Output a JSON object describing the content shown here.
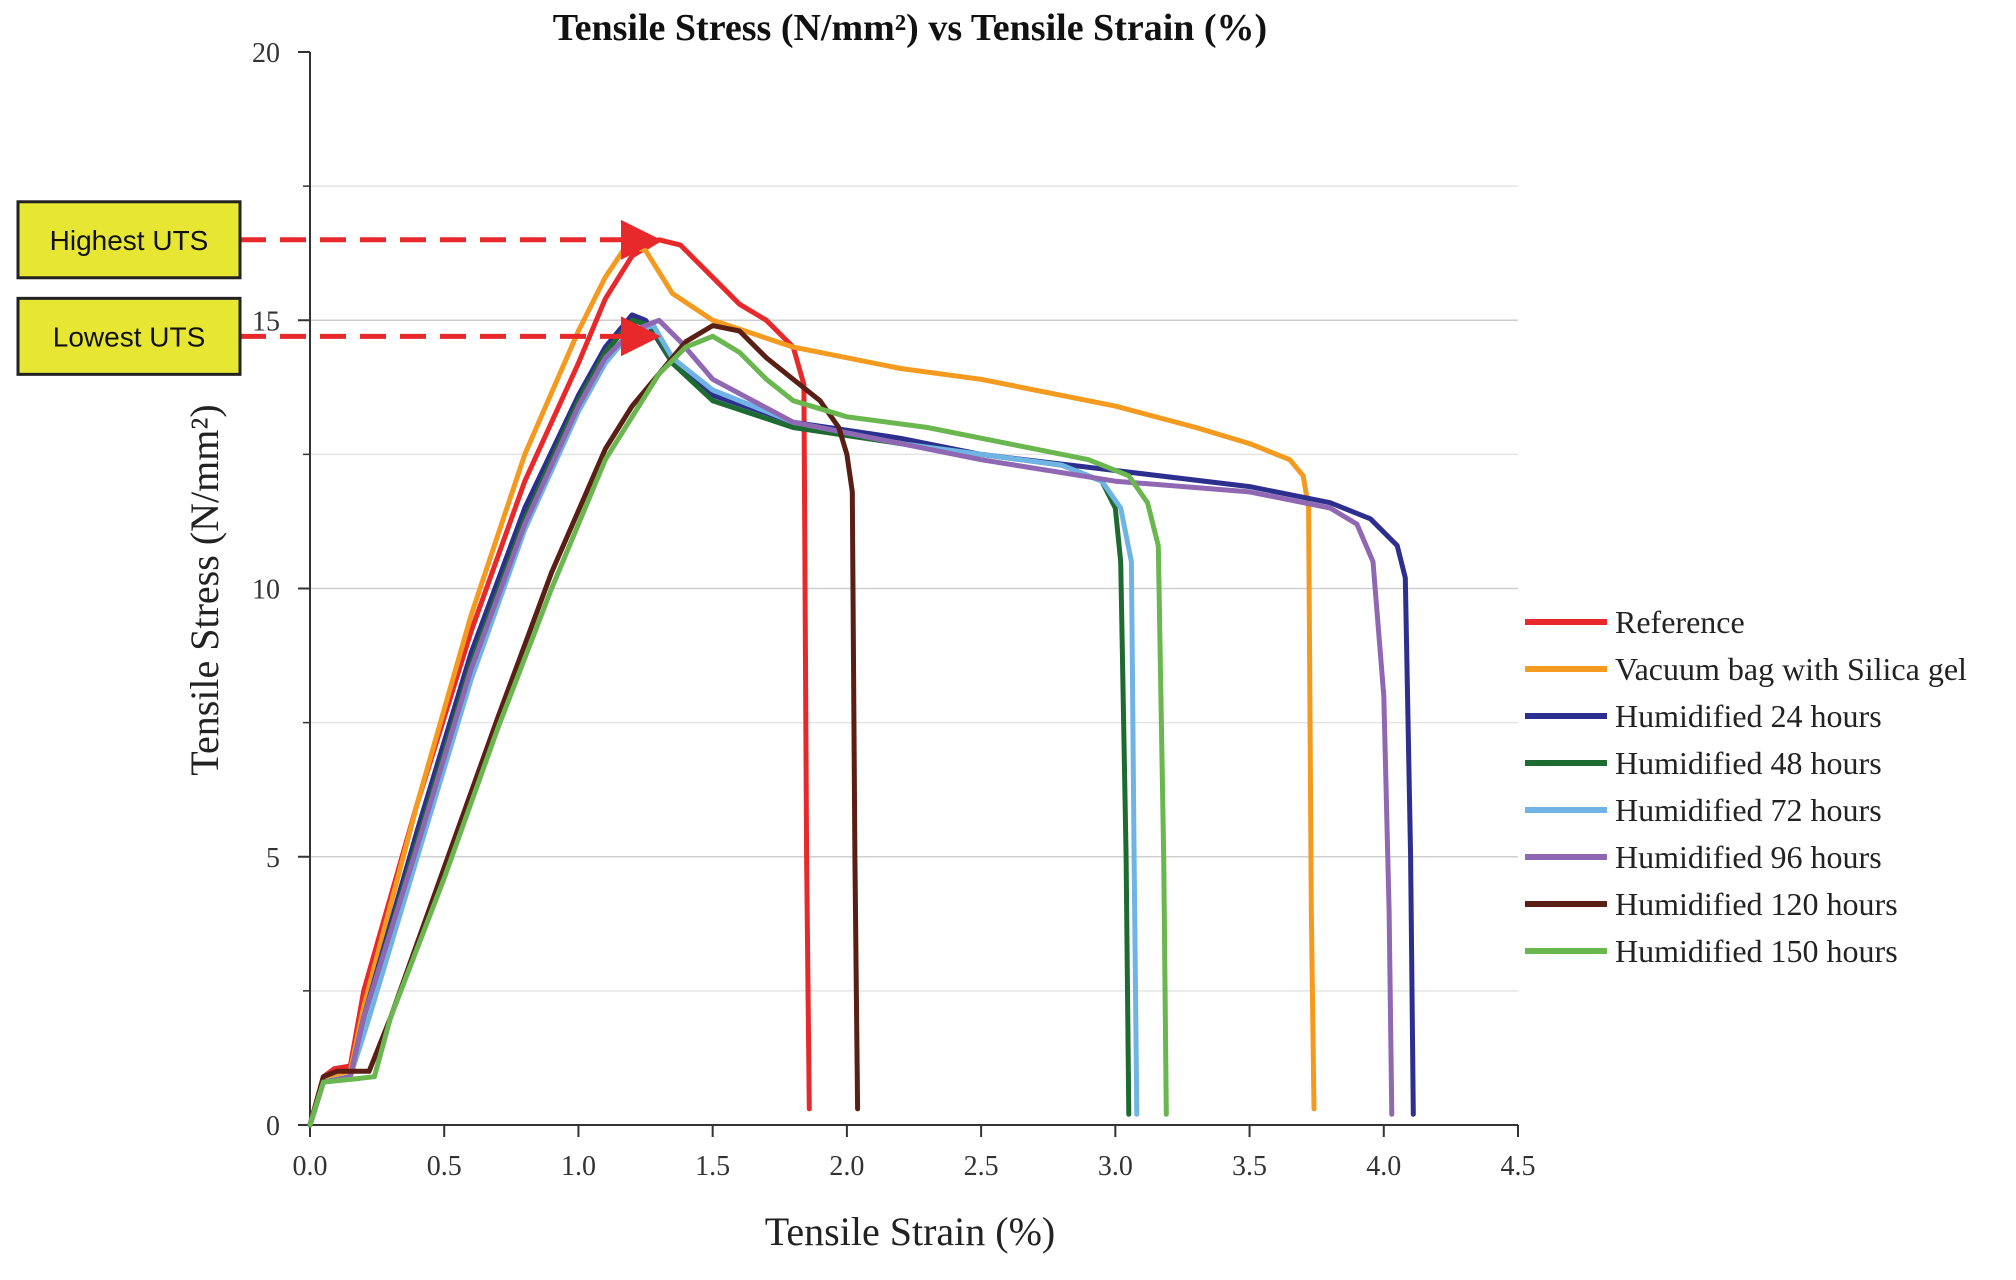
{
  "chart_data": {
    "type": "line",
    "title": "Tensile Stress (N/mm²) vs Tensile Strain (%)",
    "xlabel": "Tensile Strain (%)",
    "ylabel": "Tensile Stress (N/mm²)",
    "xlim": [
      0,
      4.5
    ],
    "ylim": [
      0,
      20
    ],
    "xticks": [
      "0.0",
      "0.5",
      "1.0",
      "1.5",
      "2.0",
      "2.5",
      "3.0",
      "3.5",
      "4.0",
      "4.5"
    ],
    "yticks": [
      "0",
      "5",
      "10",
      "15",
      "20"
    ],
    "grid": "horizontal",
    "legend_position": "right",
    "series": [
      {
        "name": "Reference",
        "color": "#e8292b",
        "points": [
          [
            0,
            0
          ],
          [
            0.05,
            0.9
          ],
          [
            0.09,
            1.05
          ],
          [
            0.15,
            1.1
          ],
          [
            0.2,
            2.5
          ],
          [
            0.4,
            6.0
          ],
          [
            0.6,
            9.2
          ],
          [
            0.8,
            12.0
          ],
          [
            1.0,
            14.2
          ],
          [
            1.1,
            15.4
          ],
          [
            1.2,
            16.2
          ],
          [
            1.3,
            16.5
          ],
          [
            1.38,
            16.4
          ],
          [
            1.5,
            15.8
          ],
          [
            1.6,
            15.3
          ],
          [
            1.7,
            15.0
          ],
          [
            1.8,
            14.5
          ],
          [
            1.84,
            13.8
          ],
          [
            1.85,
            5
          ],
          [
            1.86,
            0.3
          ]
        ]
      },
      {
        "name": "Vacuum bag with Silica gel",
        "color": "#f39a1f",
        "points": [
          [
            0,
            0
          ],
          [
            0.05,
            0.9
          ],
          [
            0.15,
            1.0
          ],
          [
            0.2,
            2.2
          ],
          [
            0.4,
            6.0
          ],
          [
            0.6,
            9.5
          ],
          [
            0.8,
            12.5
          ],
          [
            1.0,
            14.8
          ],
          [
            1.1,
            15.8
          ],
          [
            1.18,
            16.4
          ],
          [
            1.25,
            16.3
          ],
          [
            1.35,
            15.5
          ],
          [
            1.5,
            15.0
          ],
          [
            1.8,
            14.5
          ],
          [
            2.2,
            14.1
          ],
          [
            2.5,
            13.9
          ],
          [
            3.0,
            13.4
          ],
          [
            3.3,
            13.0
          ],
          [
            3.5,
            12.7
          ],
          [
            3.65,
            12.4
          ],
          [
            3.7,
            12.1
          ],
          [
            3.72,
            11.5
          ],
          [
            3.73,
            4.0
          ],
          [
            3.74,
            0.3
          ]
        ]
      },
      {
        "name": "Humidified 24 hours",
        "color": "#2c2f8e",
        "points": [
          [
            0,
            0
          ],
          [
            0.05,
            0.8
          ],
          [
            0.15,
            0.9
          ],
          [
            0.2,
            2.0
          ],
          [
            0.4,
            5.5
          ],
          [
            0.6,
            8.8
          ],
          [
            0.8,
            11.5
          ],
          [
            1.0,
            13.6
          ],
          [
            1.1,
            14.5
          ],
          [
            1.2,
            15.1
          ],
          [
            1.25,
            15.0
          ],
          [
            1.35,
            14.2
          ],
          [
            1.5,
            13.6
          ],
          [
            1.8,
            13.1
          ],
          [
            2.2,
            12.8
          ],
          [
            2.5,
            12.5
          ],
          [
            3.0,
            12.2
          ],
          [
            3.5,
            11.9
          ],
          [
            3.8,
            11.6
          ],
          [
            3.95,
            11.3
          ],
          [
            4.05,
            10.8
          ],
          [
            4.08,
            10.2
          ],
          [
            4.1,
            5.0
          ],
          [
            4.11,
            0.2
          ]
        ]
      },
      {
        "name": "Humidified 48 hours",
        "color": "#1e6b32",
        "points": [
          [
            0,
            0
          ],
          [
            0.05,
            0.8
          ],
          [
            0.15,
            0.9
          ],
          [
            0.2,
            2.0
          ],
          [
            0.4,
            5.3
          ],
          [
            0.6,
            8.6
          ],
          [
            0.8,
            11.3
          ],
          [
            1.0,
            13.5
          ],
          [
            1.1,
            14.4
          ],
          [
            1.2,
            15.0
          ],
          [
            1.27,
            14.9
          ],
          [
            1.35,
            14.2
          ],
          [
            1.5,
            13.5
          ],
          [
            1.8,
            13.0
          ],
          [
            2.2,
            12.7
          ],
          [
            2.5,
            12.5
          ],
          [
            2.8,
            12.3
          ],
          [
            2.95,
            12.0
          ],
          [
            3.0,
            11.5
          ],
          [
            3.02,
            10.5
          ],
          [
            3.04,
            5.0
          ],
          [
            3.05,
            0.2
          ]
        ]
      },
      {
        "name": "Humidified 72 hours",
        "color": "#6fb4e4",
        "points": [
          [
            0,
            0
          ],
          [
            0.05,
            0.8
          ],
          [
            0.15,
            0.9
          ],
          [
            0.22,
            2.0
          ],
          [
            0.4,
            5.0
          ],
          [
            0.6,
            8.3
          ],
          [
            0.8,
            11.1
          ],
          [
            1.0,
            13.3
          ],
          [
            1.1,
            14.2
          ],
          [
            1.2,
            14.8
          ],
          [
            1.28,
            14.9
          ],
          [
            1.35,
            14.3
          ],
          [
            1.5,
            13.7
          ],
          [
            1.8,
            13.1
          ],
          [
            2.2,
            12.7
          ],
          [
            2.5,
            12.5
          ],
          [
            2.8,
            12.3
          ],
          [
            2.95,
            12.0
          ],
          [
            3.02,
            11.5
          ],
          [
            3.06,
            10.5
          ],
          [
            3.07,
            5.0
          ],
          [
            3.08,
            0.2
          ]
        ]
      },
      {
        "name": "Humidified 96 hours",
        "color": "#8f67b3",
        "points": [
          [
            0,
            0
          ],
          [
            0.05,
            0.8
          ],
          [
            0.15,
            0.9
          ],
          [
            0.2,
            2.0
          ],
          [
            0.4,
            5.2
          ],
          [
            0.6,
            8.5
          ],
          [
            0.8,
            11.2
          ],
          [
            1.0,
            13.4
          ],
          [
            1.1,
            14.3
          ],
          [
            1.2,
            14.8
          ],
          [
            1.3,
            15.0
          ],
          [
            1.38,
            14.6
          ],
          [
            1.5,
            13.9
          ],
          [
            1.8,
            13.1
          ],
          [
            2.2,
            12.7
          ],
          [
            2.5,
            12.4
          ],
          [
            3.0,
            12.0
          ],
          [
            3.5,
            11.8
          ],
          [
            3.8,
            11.5
          ],
          [
            3.9,
            11.2
          ],
          [
            3.96,
            10.5
          ],
          [
            4.0,
            8.0
          ],
          [
            4.02,
            4.0
          ],
          [
            4.03,
            0.2
          ]
        ]
      },
      {
        "name": "Humidified 120 hours",
        "color": "#5a1f14",
        "points": [
          [
            0,
            0
          ],
          [
            0.05,
            0.9
          ],
          [
            0.1,
            1.0
          ],
          [
            0.22,
            1.0
          ],
          [
            0.3,
            2.0
          ],
          [
            0.5,
            4.8
          ],
          [
            0.7,
            7.6
          ],
          [
            0.9,
            10.3
          ],
          [
            1.1,
            12.6
          ],
          [
            1.2,
            13.4
          ],
          [
            1.3,
            14.0
          ],
          [
            1.4,
            14.6
          ],
          [
            1.5,
            14.9
          ],
          [
            1.6,
            14.8
          ],
          [
            1.7,
            14.3
          ],
          [
            1.8,
            13.9
          ],
          [
            1.9,
            13.5
          ],
          [
            1.97,
            13.0
          ],
          [
            2.0,
            12.5
          ],
          [
            2.02,
            11.8
          ],
          [
            2.03,
            5.0
          ],
          [
            2.04,
            0.3
          ]
        ]
      },
      {
        "name": "Humidified 150 hours",
        "color": "#6ab64f",
        "points": [
          [
            0,
            0
          ],
          [
            0.05,
            0.8
          ],
          [
            0.15,
            0.85
          ],
          [
            0.24,
            0.9
          ],
          [
            0.3,
            2.0
          ],
          [
            0.5,
            4.6
          ],
          [
            0.7,
            7.4
          ],
          [
            0.9,
            10.0
          ],
          [
            1.1,
            12.4
          ],
          [
            1.2,
            13.2
          ],
          [
            1.3,
            14.0
          ],
          [
            1.4,
            14.5
          ],
          [
            1.5,
            14.7
          ],
          [
            1.6,
            14.4
          ],
          [
            1.7,
            13.9
          ],
          [
            1.8,
            13.5
          ],
          [
            2.0,
            13.2
          ],
          [
            2.3,
            13.0
          ],
          [
            2.6,
            12.7
          ],
          [
            2.9,
            12.4
          ],
          [
            3.05,
            12.1
          ],
          [
            3.12,
            11.6
          ],
          [
            3.16,
            10.8
          ],
          [
            3.18,
            5.0
          ],
          [
            3.19,
            0.2
          ]
        ]
      }
    ],
    "annotations": [
      {
        "label": "Highest UTS",
        "y": 16.5,
        "x_end": 1.27,
        "color": "#e8292b",
        "box_color": "#e7e633"
      },
      {
        "label": "Lowest UTS",
        "y": 14.7,
        "x_end": 1.27,
        "color": "#e8292b",
        "box_color": "#e7e633"
      }
    ]
  }
}
